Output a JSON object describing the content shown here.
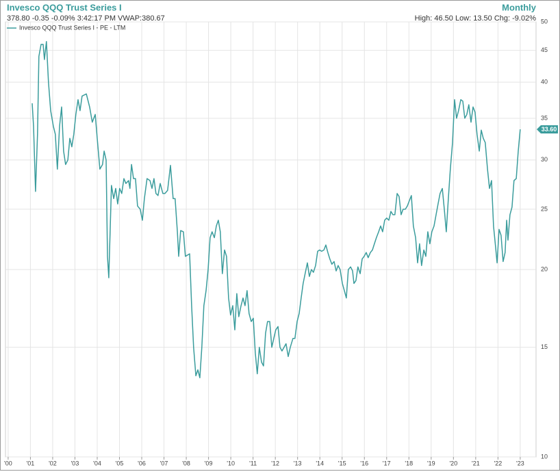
{
  "chart_data": {
    "type": "line",
    "title": "Invesco QQQ Trust Series I",
    "quote": "378.80 -0.35 -0.09% 3:42:17 PM VWAP:380.67",
    "period": "Monthly",
    "stats": "High: 46.50 Low: 13.50 Chg: -9.02%",
    "end_label": "33.60",
    "log_scale": true,
    "grid": true,
    "legend": "top-left",
    "xlim": [
      1999.88,
      2023.71
    ],
    "ylim": [
      10,
      50
    ],
    "yticks": [
      10,
      15,
      20,
      25,
      30,
      35,
      40,
      45,
      50
    ],
    "xticks": [
      {
        "value": 2000,
        "label": "'00"
      },
      {
        "value": 2001,
        "label": "'01"
      },
      {
        "value": 2002,
        "label": "'02"
      },
      {
        "value": 2003,
        "label": "'03"
      },
      {
        "value": 2004,
        "label": "'04"
      },
      {
        "value": 2005,
        "label": "'05"
      },
      {
        "value": 2006,
        "label": "'06"
      },
      {
        "value": 2007,
        "label": "'07"
      },
      {
        "value": 2008,
        "label": "'08"
      },
      {
        "value": 2009,
        "label": "'09"
      },
      {
        "value": 2010,
        "label": "'10"
      },
      {
        "value": 2011,
        "label": "'11"
      },
      {
        "value": 2012,
        "label": "'12"
      },
      {
        "value": 2013,
        "label": "'13"
      },
      {
        "value": 2014,
        "label": "'14"
      },
      {
        "value": 2015,
        "label": "'15"
      },
      {
        "value": 2016,
        "label": "'16"
      },
      {
        "value": 2017,
        "label": "'17"
      },
      {
        "value": 2018,
        "label": "'18"
      },
      {
        "value": 2019,
        "label": "'19"
      },
      {
        "value": 2020,
        "label": "'20"
      },
      {
        "value": 2021,
        "label": "'21"
      },
      {
        "value": 2022,
        "label": "'22"
      },
      {
        "value": 2023,
        "label": "'23"
      }
    ],
    "series": [
      {
        "name": "Invesco QQQ Trust Series I - PE - LTM",
        "color": "#3a9c9c",
        "x": [
          2001.08,
          2001.14,
          2001.23,
          2001.32,
          2001.38,
          2001.48,
          2001.57,
          2001.63,
          2001.72,
          2001.81,
          2001.91,
          2002.03,
          2002.12,
          2002.21,
          2002.31,
          2002.4,
          2002.49,
          2002.58,
          2002.68,
          2002.77,
          2002.86,
          2002.95,
          2003.04,
          2003.14,
          2003.23,
          2003.32,
          2003.51,
          2003.66,
          2003.78,
          2003.91,
          2004.0,
          2004.12,
          2004.24,
          2004.31,
          2004.4,
          2004.46,
          2004.52,
          2004.64,
          2004.74,
          2004.83,
          2004.92,
          2005.01,
          2005.1,
          2005.2,
          2005.29,
          2005.41,
          2005.47,
          2005.54,
          2005.63,
          2005.72,
          2005.81,
          2005.93,
          2006.03,
          2006.12,
          2006.24,
          2006.37,
          2006.46,
          2006.55,
          2006.64,
          2006.73,
          2006.83,
          2006.95,
          2007.04,
          2007.16,
          2007.29,
          2007.41,
          2007.5,
          2007.6,
          2007.66,
          2007.75,
          2007.87,
          2007.96,
          2008.06,
          2008.15,
          2008.24,
          2008.33,
          2008.43,
          2008.52,
          2008.61,
          2008.7,
          2008.79,
          2008.89,
          2008.98,
          2009.07,
          2009.16,
          2009.26,
          2009.35,
          2009.44,
          2009.53,
          2009.62,
          2009.72,
          2009.81,
          2009.9,
          2009.99,
          2010.09,
          2010.18,
          2010.27,
          2010.36,
          2010.46,
          2010.55,
          2010.64,
          2010.73,
          2010.82,
          2010.92,
          2011.01,
          2011.1,
          2011.19,
          2011.28,
          2011.38,
          2011.47,
          2011.56,
          2011.65,
          2011.75,
          2011.84,
          2011.93,
          2012.02,
          2012.12,
          2012.21,
          2012.3,
          2012.39,
          2012.48,
          2012.58,
          2012.67,
          2012.79,
          2012.88,
          2012.98,
          2013.07,
          2013.16,
          2013.25,
          2013.35,
          2013.44,
          2013.53,
          2013.62,
          2013.71,
          2013.81,
          2013.9,
          2013.99,
          2014.08,
          2014.18,
          2014.27,
          2014.36,
          2014.45,
          2014.54,
          2014.64,
          2014.73,
          2014.82,
          2014.91,
          2015.01,
          2015.1,
          2015.19,
          2015.28,
          2015.38,
          2015.47,
          2015.53,
          2015.62,
          2015.71,
          2015.81,
          2015.9,
          2015.99,
          2016.08,
          2016.17,
          2016.27,
          2016.36,
          2016.45,
          2016.54,
          2016.64,
          2016.73,
          2016.82,
          2016.91,
          2017.0,
          2017.1,
          2017.19,
          2017.28,
          2017.37,
          2017.47,
          2017.56,
          2017.65,
          2017.74,
          2017.84,
          2017.93,
          2018.02,
          2018.11,
          2018.2,
          2018.3,
          2018.39,
          2018.48,
          2018.57,
          2018.67,
          2018.76,
          2018.85,
          2018.94,
          2019.03,
          2019.13,
          2019.22,
          2019.31,
          2019.4,
          2019.5,
          2019.59,
          2019.68,
          2019.77,
          2019.86,
          2019.96,
          2020.05,
          2020.14,
          2020.23,
          2020.33,
          2020.42,
          2020.51,
          2020.6,
          2020.69,
          2020.79,
          2020.88,
          2020.97,
          2021.06,
          2021.16,
          2021.25,
          2021.34,
          2021.43,
          2021.53,
          2021.62,
          2021.71,
          2021.8,
          2021.89,
          2021.96,
          2022.05,
          2022.14,
          2022.23,
          2022.32,
          2022.39,
          2022.45,
          2022.54,
          2022.63,
          2022.72,
          2022.82,
          2022.91,
          2023.0
        ],
        "values": [
          37,
          34,
          26.7,
          33,
          44,
          46,
          46,
          43.5,
          46.5,
          40,
          36,
          34,
          33,
          29,
          34,
          36.5,
          31,
          29.5,
          30,
          32.5,
          31.5,
          33,
          35.5,
          37.5,
          36,
          38,
          38.3,
          36.5,
          34.5,
          35.5,
          32.5,
          29,
          29.5,
          31,
          30,
          21,
          19.4,
          27.3,
          26,
          27,
          25.5,
          27,
          26.5,
          28,
          27.5,
          27.8,
          27,
          29.5,
          28,
          28,
          25.3,
          25,
          24,
          26,
          28,
          27.8,
          27,
          28,
          26.5,
          26.3,
          27.5,
          26.5,
          26.5,
          26.8,
          29.4,
          26,
          26,
          23,
          21,
          23.1,
          23,
          21,
          21.1,
          21.2,
          17.5,
          15,
          13.5,
          13.8,
          13.4,
          15,
          17.5,
          18.5,
          20,
          22.5,
          23,
          22.5,
          23.5,
          24,
          23,
          19.7,
          21.5,
          21,
          18,
          16.9,
          17.5,
          16,
          18.3,
          16.8,
          17.5,
          18,
          17.5,
          18.5,
          17,
          16.5,
          16.7,
          14.7,
          13.6,
          15,
          14.2,
          14,
          15.8,
          16.5,
          16.5,
          15,
          15.5,
          16,
          16.2,
          15,
          14.8,
          15,
          15.2,
          14.5,
          15,
          15.5,
          15.5,
          16.5,
          17,
          18,
          19,
          19.8,
          20.5,
          19.5,
          20,
          19.8,
          20.3,
          21.4,
          21.5,
          21.4,
          21.5,
          21.9,
          21.3,
          20.8,
          20.4,
          20.6,
          19.9,
          20.3,
          20,
          19,
          18.5,
          18,
          20,
          20.2,
          19.9,
          19,
          19.2,
          20.2,
          19.7,
          20.8,
          21,
          21.3,
          20.9,
          21.3,
          21.5,
          22,
          22.5,
          23,
          23.5,
          23,
          24,
          24.2,
          24,
          24.8,
          24.5,
          24.5,
          26.5,
          26.2,
          24.5,
          25,
          25,
          25.3,
          25.8,
          26.3,
          23.5,
          22.5,
          20.5,
          22,
          20.3,
          21.5,
          21,
          23,
          22,
          23,
          23.5,
          24.5,
          25.5,
          26.5,
          27,
          25,
          23,
          26,
          29,
          32,
          37.5,
          35,
          36,
          37.5,
          37.3,
          35,
          35.5,
          36.8,
          34.5,
          36.5,
          35.8,
          33,
          31,
          33.5,
          32.5,
          32,
          29,
          27,
          27.8,
          23.5,
          21.8,
          20.5,
          23.2,
          22.7,
          20.6,
          21.3,
          24,
          22.3,
          24.5,
          25.2,
          27.8,
          28,
          31,
          33.6
        ]
      }
    ]
  }
}
